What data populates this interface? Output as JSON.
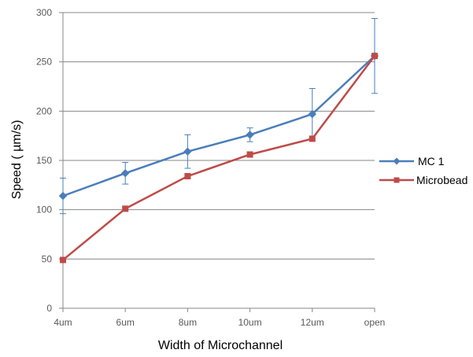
{
  "chart_data": {
    "type": "line",
    "title": "",
    "xlabel": "Width of Microchannel",
    "ylabel": "Speed ( µm/s)",
    "categories": [
      "4um",
      "6um",
      "8um",
      "10um",
      "12um",
      "open"
    ],
    "ylim": [
      0,
      300
    ],
    "yticks": [
      0,
      50,
      100,
      150,
      200,
      250,
      300
    ],
    "grid": true,
    "legend_position": "right",
    "series": [
      {
        "name": "MC  1",
        "color": "#4a7ebb",
        "marker": "diamond",
        "values": [
          114,
          137,
          159,
          176,
          197,
          256
        ],
        "error": [
          18,
          11,
          17,
          7,
          26,
          38
        ]
      },
      {
        "name": "Microbead",
        "color": "#be4b48",
        "marker": "square",
        "values": [
          49,
          101,
          134,
          156,
          172,
          256
        ]
      }
    ]
  }
}
